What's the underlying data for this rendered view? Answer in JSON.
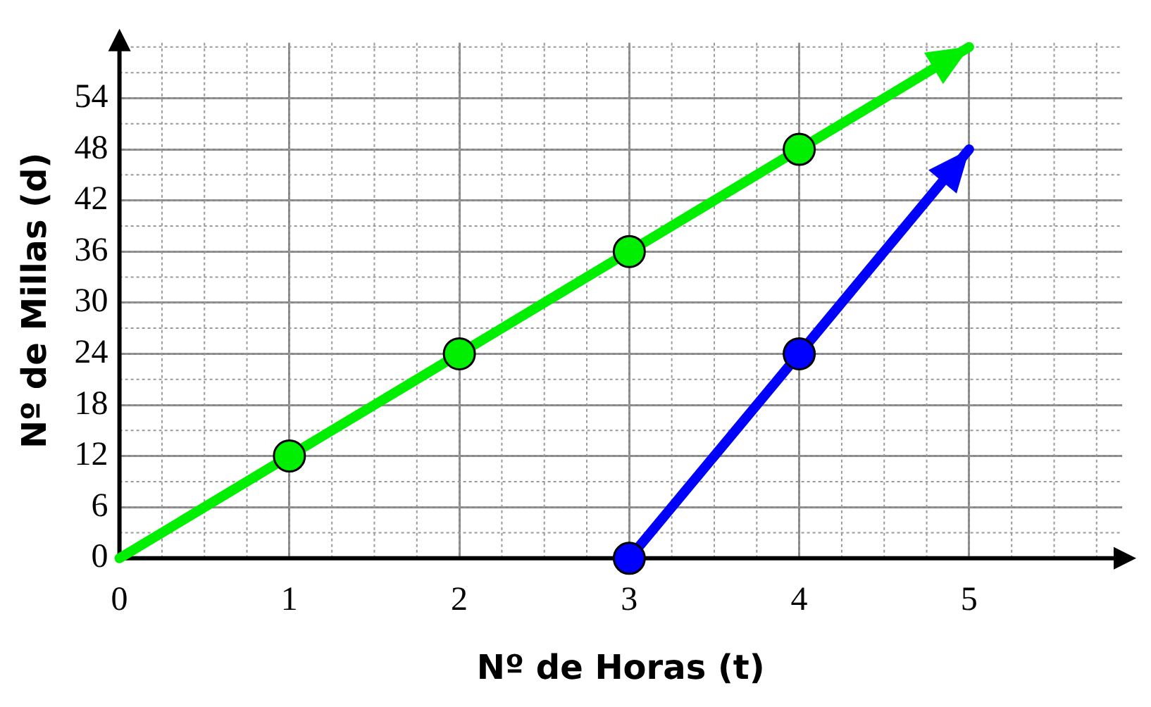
{
  "chart_data": {
    "type": "line",
    "xlabel": "Nº de Horas (t)",
    "ylabel": "Nº de Millas (d)",
    "series": [
      {
        "color": "#00ee00",
        "x": [
          0,
          1,
          2,
          3,
          4,
          5
        ],
        "values": [
          0,
          12,
          24,
          36,
          48,
          60
        ]
      },
      {
        "color": "#0000ff",
        "x": [
          3,
          4,
          5
        ],
        "values": [
          0,
          24,
          48
        ]
      }
    ],
    "xlim": [
      0,
      5.9
    ],
    "ylim": [
      0,
      60.5
    ],
    "xticks": [
      0,
      1,
      2,
      3,
      4,
      5
    ],
    "yticks": [
      0,
      6,
      12,
      18,
      24,
      30,
      36,
      42,
      48,
      54
    ],
    "grid": true,
    "legend": false,
    "marker": "circle",
    "line_style": "solid"
  }
}
